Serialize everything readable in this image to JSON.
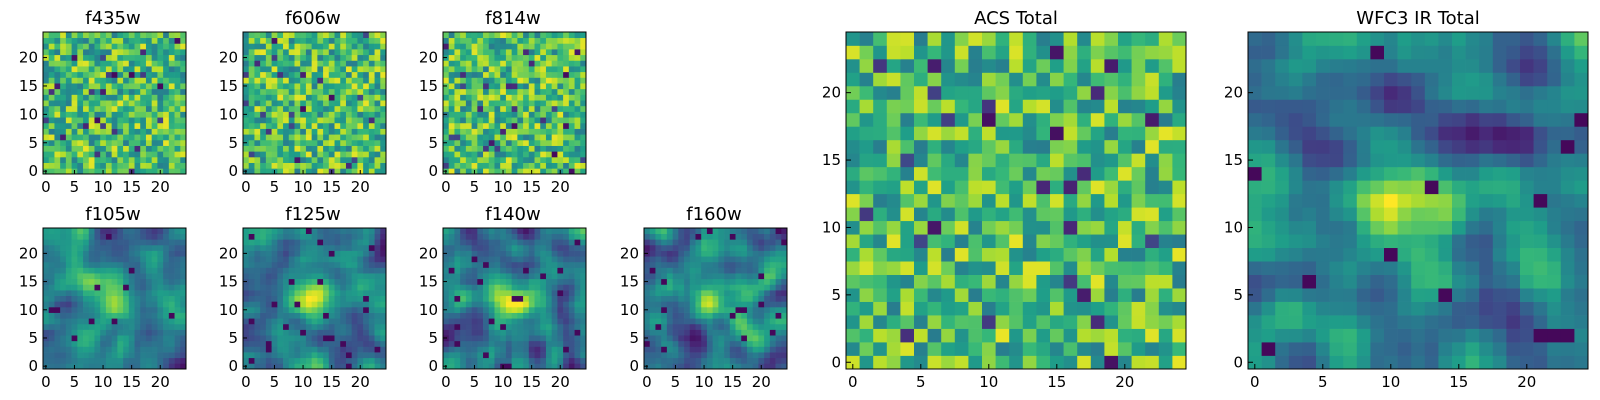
{
  "chart_data": {
    "type": "heatmap",
    "colormap": "viridis",
    "grid_size": 25,
    "x_ticks": [
      0,
      5,
      10,
      15,
      20
    ],
    "y_ticks": [
      0,
      5,
      10,
      15,
      20
    ],
    "xlim": [
      0,
      25
    ],
    "ylim": [
      0,
      25
    ],
    "panels": [
      {
        "name": "f435w",
        "title": "f435w",
        "size": "small",
        "structure": "noise",
        "seed": 11
      },
      {
        "name": "f606w",
        "title": "f606w",
        "size": "small",
        "structure": "noise",
        "seed": 23
      },
      {
        "name": "f814w",
        "title": "f814w",
        "size": "small",
        "structure": "noise",
        "seed": 37
      },
      {
        "name": "f105w",
        "title": "f105w",
        "size": "small",
        "structure": "smooth-central-source",
        "seed": 41
      },
      {
        "name": "f125w",
        "title": "f125w",
        "size": "small",
        "structure": "smooth-central-source",
        "seed": 53
      },
      {
        "name": "f140w",
        "title": "f140w",
        "size": "small",
        "structure": "smooth-central-source",
        "seed": 67
      },
      {
        "name": "f160w",
        "title": "f160w",
        "size": "small",
        "structure": "smooth-central-source",
        "seed": 79
      },
      {
        "name": "acs-total",
        "title": "ACS Total",
        "size": "large",
        "structure": "noise",
        "seed": 89
      },
      {
        "name": "wfc3-ir-total",
        "title": "WFC3 IR Total",
        "size": "large",
        "structure": "smooth-central-source",
        "seed": 97
      }
    ]
  }
}
